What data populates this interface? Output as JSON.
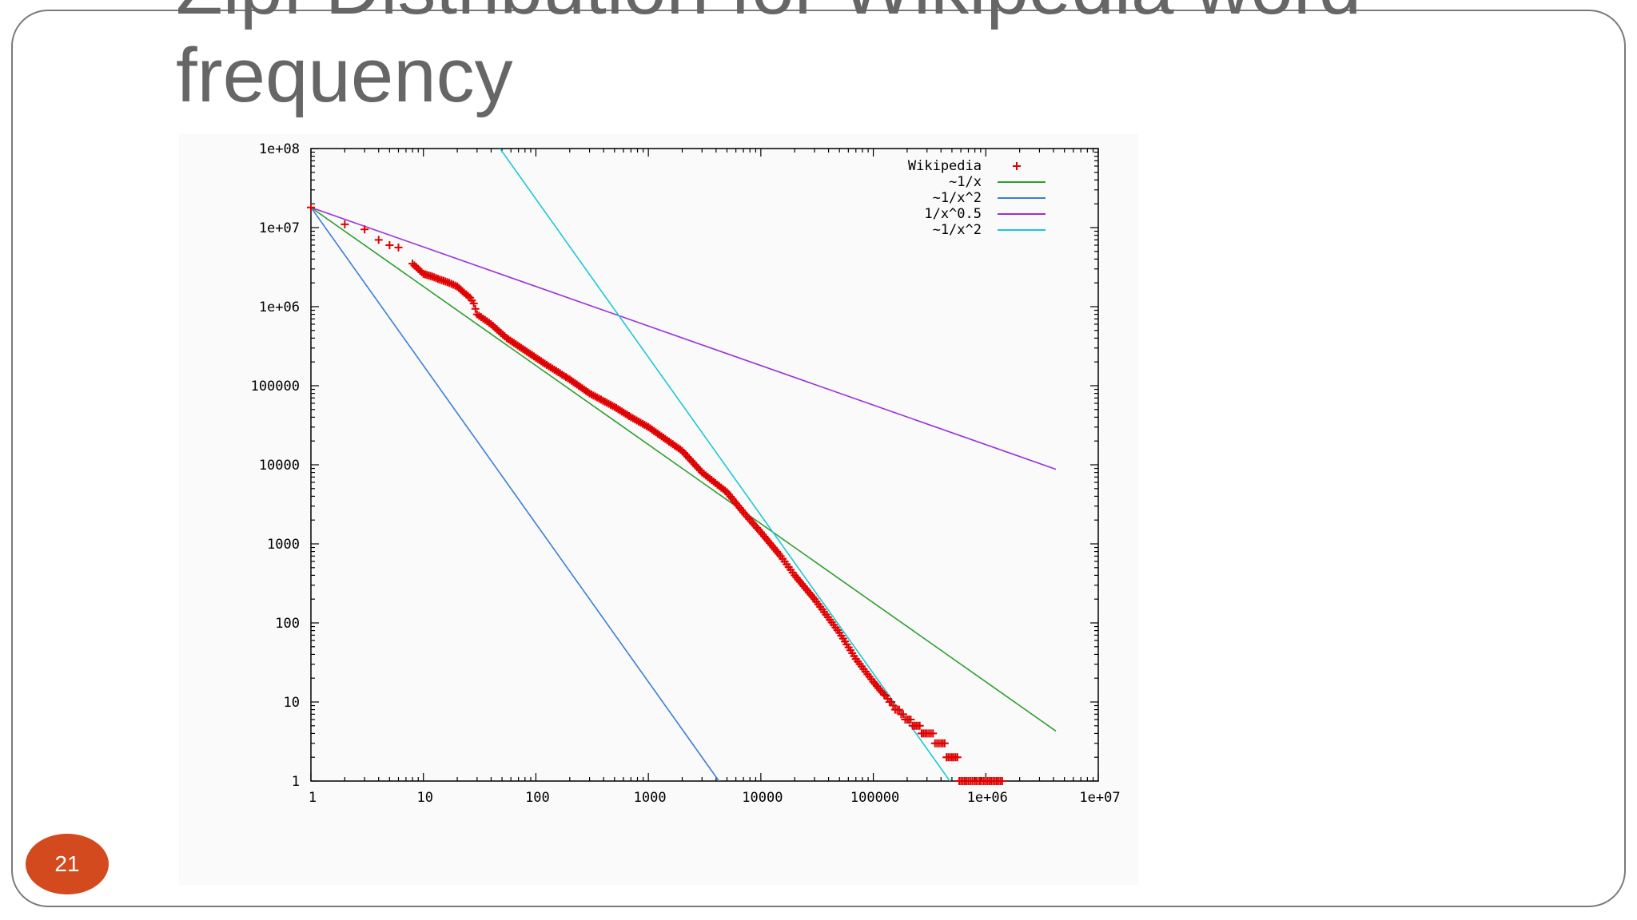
{
  "slide": {
    "title": "Zipf Distribution for Wikipedia  word\nfrequency",
    "page_number": "21"
  },
  "colors": {
    "frame": "#7a7a7a",
    "title_text": "#666666",
    "page_badge": "#d44a1f",
    "wikipedia": "#e00000",
    "inv_x": "#2ca02c",
    "inv_x2_blue": "#3a7fd5",
    "inv_sqrt": "#9b30d9",
    "inv_x2_cyan": "#19c9d6"
  },
  "chart_data": {
    "type": "scatter",
    "title": "",
    "xlabel": "",
    "ylabel": "",
    "xscale": "log",
    "yscale": "log",
    "xlim": [
      1,
      10000000
    ],
    "ylim": [
      1,
      100000000
    ],
    "x_ticks": [
      "1",
      "10",
      "100",
      "1000",
      "10000",
      "100000",
      "1e+06",
      "1e+07"
    ],
    "y_ticks": [
      "1",
      "10",
      "100",
      "1000",
      "10000",
      "100000",
      "1e+06",
      "1e+07",
      "1e+08"
    ],
    "legend_position": "top-right",
    "series": [
      {
        "name": "Wikipedia",
        "style": "points",
        "marker": "+",
        "color": "#e00000",
        "points": [
          [
            1,
            18000000
          ],
          [
            2,
            11000000
          ],
          [
            3,
            9500000
          ],
          [
            4,
            7000000
          ],
          [
            5,
            6000000
          ],
          [
            6,
            5600000
          ],
          [
            8,
            3500000
          ],
          [
            9,
            3000000
          ],
          [
            10,
            2600000
          ],
          [
            12,
            2400000
          ],
          [
            14,
            2200000
          ],
          [
            17,
            2000000
          ],
          [
            20,
            1800000
          ],
          [
            23,
            1500000
          ],
          [
            26,
            1300000
          ],
          [
            28,
            1100000
          ],
          [
            30,
            800000
          ],
          [
            40,
            600000
          ],
          [
            55,
            400000
          ],
          [
            80,
            280000
          ],
          [
            120,
            190000
          ],
          [
            200,
            120000
          ],
          [
            300,
            80000
          ],
          [
            500,
            54000
          ],
          [
            700,
            40000
          ],
          [
            1000,
            30000
          ],
          [
            2000,
            15000
          ],
          [
            3000,
            8000
          ],
          [
            5000,
            4500
          ],
          [
            7000,
            2500
          ],
          [
            10000,
            1400
          ],
          [
            15000,
            700
          ],
          [
            20000,
            400
          ],
          [
            30000,
            200
          ],
          [
            50000,
            75
          ],
          [
            70000,
            35
          ],
          [
            100000,
            18
          ],
          [
            150000,
            9
          ],
          [
            200000,
            6
          ],
          [
            300000,
            4
          ],
          [
            400000,
            3
          ],
          [
            500000,
            2
          ],
          [
            700000,
            1
          ],
          [
            1000000,
            1
          ],
          [
            1400000,
            1
          ]
        ]
      },
      {
        "name": "~1/x",
        "style": "line",
        "color": "#2ca02c",
        "function": "1/x",
        "coefficient": 18000000,
        "xrange": [
          1,
          4200000
        ]
      },
      {
        "name": "~1/x^2",
        "style": "line",
        "color": "#3a7fd5",
        "function": "1/x^2",
        "coefficient": 18000000,
        "xrange": [
          1,
          4300
        ]
      },
      {
        "name": "1/x^0.5",
        "style": "line",
        "color": "#9b30d9",
        "function": "1/x^0.5",
        "coefficient": 18000000,
        "xrange": [
          1,
          4200000
        ]
      },
      {
        "name": "~1/x^2",
        "style": "line",
        "color": "#19c9d6",
        "function": "1/x^2",
        "coefficient": 230000000000,
        "xrange": [
          48,
          480000
        ]
      }
    ]
  }
}
